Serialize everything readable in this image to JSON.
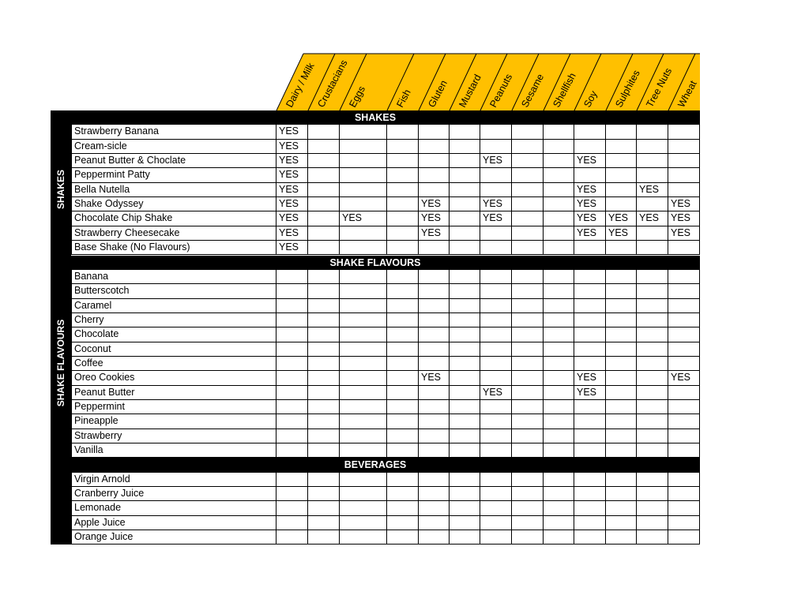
{
  "colors": {
    "header_fill": "#FFC000",
    "band": "#000000"
  },
  "allergens": [
    "Dairy / Milk",
    "Crustacians",
    "Eggs",
    "Fish",
    "Gluten",
    "Mustard",
    "Peanuts",
    "Sesame",
    "Shellfish",
    "Soy",
    "Sulphites",
    "Tree Nuts",
    "Wheat"
  ],
  "yes_label": "YES",
  "sections": [
    {
      "title": "SHAKES",
      "side_label": "SHAKES",
      "items": [
        {
          "name": "Strawberry Banana",
          "yes": [
            "Dairy / Milk"
          ]
        },
        {
          "name": "Cream-sicle",
          "yes": [
            "Dairy / Milk"
          ]
        },
        {
          "name": "Peanut Butter & Choclate",
          "yes": [
            "Dairy / Milk",
            "Peanuts",
            "Soy"
          ]
        },
        {
          "name": "Peppermint Patty",
          "yes": [
            "Dairy / Milk"
          ]
        },
        {
          "name": "Bella Nutella",
          "yes": [
            "Dairy / Milk",
            "Soy",
            "Tree Nuts"
          ]
        },
        {
          "name": "Shake Odyssey",
          "yes": [
            "Dairy / Milk",
            "Gluten",
            "Peanuts",
            "Soy",
            "Wheat"
          ]
        },
        {
          "name": "Chocolate Chip Shake",
          "yes": [
            "Dairy / Milk",
            "Eggs",
            "Gluten",
            "Peanuts",
            "Soy",
            "Sulphites",
            "Tree Nuts",
            "Wheat"
          ]
        },
        {
          "name": "Strawberry Cheesecake",
          "yes": [
            "Dairy / Milk",
            "Gluten",
            "Soy",
            "Sulphites",
            "Wheat"
          ]
        },
        {
          "name": "Base Shake (No Flavours)",
          "yes": [
            "Dairy / Milk"
          ]
        }
      ]
    },
    {
      "title": "SHAKE FLAVOURS",
      "side_label": "SHAKE FLAVOURS",
      "items": [
        {
          "name": "Banana",
          "yes": []
        },
        {
          "name": "Butterscotch",
          "yes": []
        },
        {
          "name": "Caramel",
          "yes": []
        },
        {
          "name": "Cherry",
          "yes": []
        },
        {
          "name": "Chocolate",
          "yes": []
        },
        {
          "name": "Coconut",
          "yes": []
        },
        {
          "name": "Coffee",
          "yes": []
        },
        {
          "name": "Oreo Cookies",
          "yes": [
            "Gluten",
            "Soy",
            "Wheat"
          ]
        },
        {
          "name": "Peanut Butter",
          "yes": [
            "Peanuts",
            "Soy"
          ]
        },
        {
          "name": "Peppermint",
          "yes": []
        },
        {
          "name": "Pineapple",
          "yes": []
        },
        {
          "name": "Strawberry",
          "yes": []
        },
        {
          "name": "Vanilla",
          "yes": []
        }
      ]
    },
    {
      "title": "BEVERAGES",
      "side_label": "",
      "items": [
        {
          "name": "Virgin Arnold",
          "yes": []
        },
        {
          "name": "Cranberry Juice",
          "yes": []
        },
        {
          "name": "Lemonade",
          "yes": []
        },
        {
          "name": "Apple Juice",
          "yes": []
        },
        {
          "name": "Orange Juice",
          "yes": []
        }
      ]
    }
  ]
}
